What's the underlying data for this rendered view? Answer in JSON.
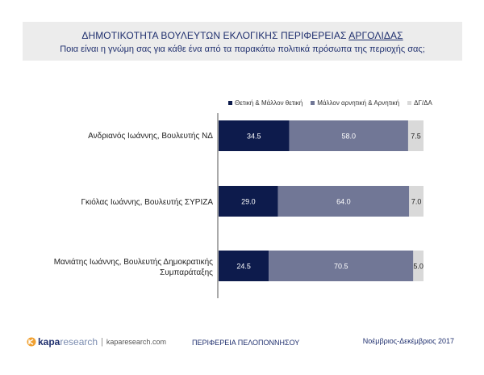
{
  "header": {
    "title_prefix": "ΔΗΜΟΤΙΚΟΤΗΤΑ ΒΟΥΛΕΥΤΩΝ ΕΚΛΟΓΙΚΗΣ ΠΕΡΙΦΕΡΕΙΑΣ ",
    "title_highlight": "ΑΡΓΟΛΙΔΑΣ",
    "subtitle": "Ποια είναι η γνώμη σας για κάθε ένα από τα παρακάτω πολιτικά πρόσωπα της περιοχής σας;"
  },
  "legend": [
    {
      "label": "Θετική & Μάλλον θετική",
      "color": "#0d1b4c"
    },
    {
      "label": "Μάλλον αρνητική & Αρνητική",
      "color": "#717796"
    },
    {
      "label": "ΔΓ/ΔΑ",
      "color": "#d9d9d9"
    }
  ],
  "chart_data": {
    "type": "bar",
    "orientation": "horizontal",
    "stacked": true,
    "categories": [
      "Ανδριανός Ιωάννης, Βουλευτής ΝΔ",
      "Γκιόλας Ιωάννης, Βουλευτής ΣΥΡΙΖΑ",
      "Μανιάτης Ιωάννης, Βουλευτής Δημοκρατικής Συμπαράταξης"
    ],
    "series": [
      {
        "name": "Θετική & Μάλλον θετική",
        "values": [
          34.5,
          29.0,
          24.5
        ],
        "color": "#0d1b4c",
        "label_color": "#ffffff"
      },
      {
        "name": "Μάλλον αρνητική & Αρνητική",
        "values": [
          58.0,
          64.0,
          70.5
        ],
        "color": "#717796",
        "label_color": "#ffffff"
      },
      {
        "name": "ΔΓ/ΔΑ",
        "values": [
          7.5,
          7.0,
          5.0
        ],
        "color": "#d9d9d9",
        "label_color": "#222222"
      }
    ],
    "xlim": [
      0,
      100
    ],
    "legend_position": "top",
    "grid": false
  },
  "footer": {
    "logo_kapa": "kapa",
    "logo_research": "research",
    "logo_sep": "|",
    "logo_url": "kaparesearch.com",
    "region": "ΠΕΡΙΦΕΡΕΙΑ ΠΕΛΟΠΟΝΝΗΣΟΥ",
    "period": "Νοέμβριος-Δεκέμβριος 2017"
  }
}
